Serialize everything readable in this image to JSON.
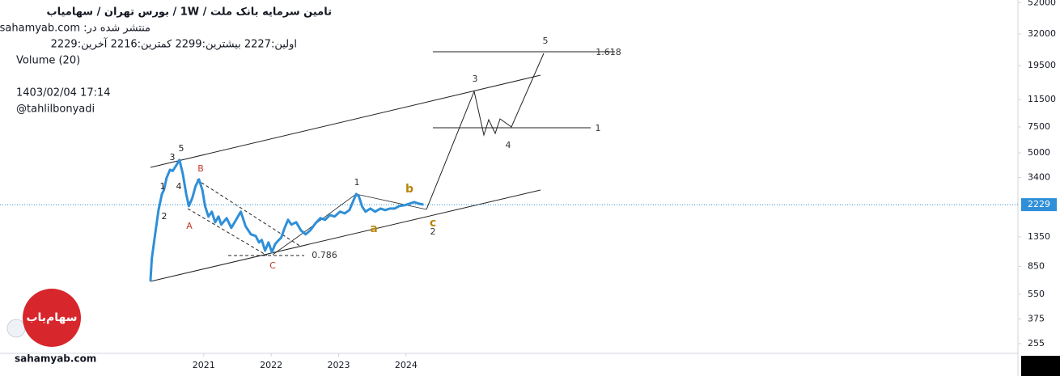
{
  "chart_data": {
    "type": "line",
    "title": "تامین سرمایه بانک ملت / 1W / بورس تهران / سهامیاب",
    "info_lines": [
      "منتشر شده در: sahamyab.com",
      "اولین:2227 بیشترین:2299 کمترین:2216 آخرین:2229",
      "Volume (20)",
      "1403/02/04 17:14",
      "@tahlilbonyadi"
    ],
    "watermark": "sahamyab.com",
    "logo_text": "سهام‌یاب",
    "log_scale": true,
    "grid": false,
    "ylim": [
      219,
      54300
    ],
    "yticks": [
      52000,
      32000,
      19500,
      11500,
      7500,
      5000,
      3400,
      1350,
      850,
      550,
      375,
      255
    ],
    "xlim": [
      2017.98,
      2033.07
    ],
    "xticks": [
      2021,
      2022,
      2023,
      2024
    ],
    "last_price": 2229,
    "x": [
      2020.21,
      2020.23,
      2020.28,
      2020.33,
      2020.38,
      2020.41,
      2020.45,
      2020.5,
      2020.54,
      2020.59,
      2020.64,
      2020.69,
      2020.74,
      2020.78,
      2020.83,
      2020.88,
      2020.93,
      2020.98,
      2021.02,
      2021.07,
      2021.12,
      2021.17,
      2021.22,
      2021.26,
      2021.34,
      2021.41,
      2021.48,
      2021.55,
      2021.62,
      2021.7,
      2021.77,
      2021.82,
      2021.86,
      2021.91,
      2021.96,
      2022.01,
      2022.06,
      2022.1,
      2022.15,
      2022.2,
      2022.25,
      2022.3,
      2022.37,
      2022.44,
      2022.51,
      2022.58,
      2022.66,
      2022.73,
      2022.8,
      2022.87,
      2022.94,
      2023.02,
      2023.09,
      2023.16,
      2023.21,
      2023.26,
      2023.3,
      2023.35,
      2023.4,
      2023.47,
      2023.54,
      2023.62,
      2023.69,
      2023.76,
      2023.83,
      2023.9,
      2023.98,
      2024.05,
      2024.12,
      2024.19,
      2024.26
    ],
    "series": [
      {
        "color": "#2f8fd8",
        "values": [
          674,
          960,
          1403,
          2047,
          2633,
          2805,
          3389,
          3843,
          3770,
          4095,
          4476,
          3610,
          2633,
          2181,
          2470,
          2986,
          3306,
          2805,
          2181,
          1851,
          1996,
          1694,
          1851,
          1631,
          1805,
          1551,
          1761,
          1996,
          1591,
          1403,
          1367,
          1237,
          1284,
          1089,
          1237,
          1062,
          1205,
          1268,
          1333,
          1551,
          1761,
          1631,
          1694,
          1494,
          1403,
          1494,
          1673,
          1805,
          1761,
          1897,
          1851,
          1996,
          1945,
          2047,
          2321,
          2633,
          2536,
          2153,
          1996,
          2099,
          1996,
          2099,
          2047,
          2099,
          2099,
          2181,
          2208,
          2263,
          2321,
          2263,
          2229
        ]
      }
    ],
    "wave_labels": [
      "5",
      "3",
      "4",
      "1.618",
      "1",
      "3",
      "5",
      "1",
      "4",
      "2",
      "B",
      "A",
      "C",
      "0.786",
      "1",
      "b",
      "c",
      "2",
      "a"
    ]
  }
}
